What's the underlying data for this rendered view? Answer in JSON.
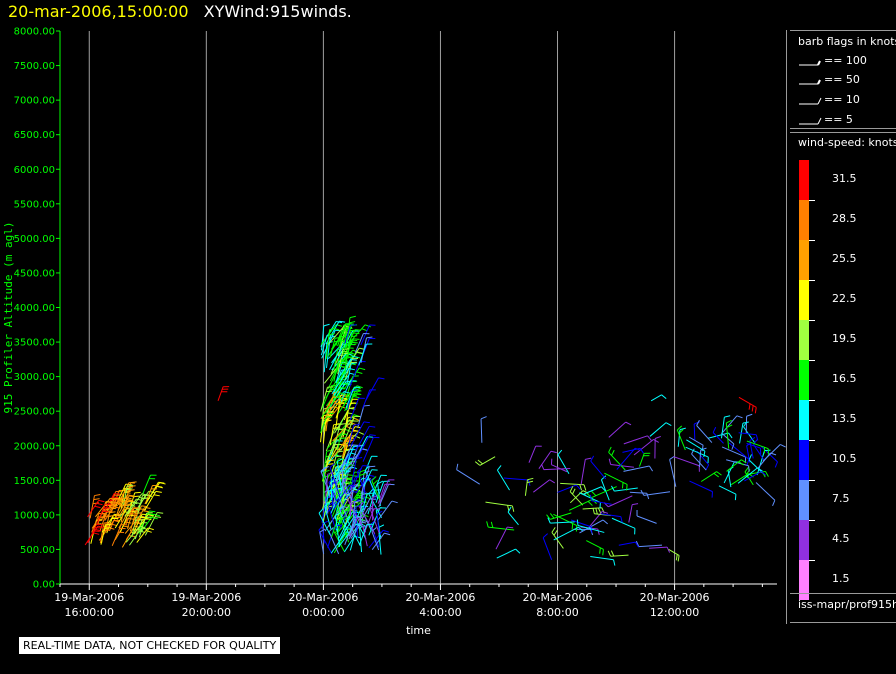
{
  "header": {
    "timestamp": "20-mar-2006,15:00:00",
    "product": "XYWind:915winds."
  },
  "colors": {
    "axis": "#00ff00",
    "grid": "#a0a0a0",
    "frame": "#ffffff"
  },
  "chart_data": {
    "type": "scatter",
    "title": "20-mar-2006,15:00:00 XYWind:915winds.",
    "xlabel": "time",
    "ylabel": "915 Profiler Altitude (m agl)",
    "ylim": [
      0,
      8000
    ],
    "y_ticks": [
      "0.00",
      "500.00",
      "1000.00",
      "1500.00",
      "2000.00",
      "2500.00",
      "3000.00",
      "3500.00",
      "4000.00",
      "4500.00",
      "5000.00",
      "5500.00",
      "6000.00",
      "6500.00",
      "7000.00",
      "7500.00",
      "8000.00"
    ],
    "x_ticks": [
      {
        "date": "19-Mar-2006",
        "time": "16:00:00",
        "hours": 0
      },
      {
        "date": "19-Mar-2006",
        "time": "20:00:00",
        "hours": 4
      },
      {
        "date": "20-Mar-2006",
        "time": "0:00:00",
        "hours": 8
      },
      {
        "date": "20-Mar-2006",
        "time": "4:00:00",
        "hours": 12
      },
      {
        "date": "20-Mar-2006",
        "time": "8:00:00",
        "hours": 16
      },
      {
        "date": "20-Mar-2006",
        "time": "12:00:00",
        "hours": 20
      }
    ],
    "xlim_hours": [
      -1,
      23.5
    ],
    "grid": true,
    "series": [
      {
        "color_class": "red-orange",
        "time_range_hours": [
          -0.2,
          2
        ],
        "alt_range_m": [
          500,
          1400
        ],
        "speed_range_knots": [
          22,
          33
        ]
      },
      {
        "color_class": "multicolor",
        "time_range_hours": [
          7.8,
          10.1
        ],
        "alt_range_m": [
          400,
          3600
        ],
        "speed_range_knots": [
          4,
          26
        ]
      },
      {
        "color_class": "sparse",
        "time_range_hours": [
          12.9,
          23.1
        ],
        "alt_range_m": [
          300,
          2800
        ],
        "speed_range_knots": [
          3,
          33
        ]
      }
    ]
  },
  "legend": {
    "barb_title": "barb flags in knots",
    "barbs": [
      {
        "label": "== 100"
      },
      {
        "label": "== 50"
      },
      {
        "label": "== 10"
      },
      {
        "label": "== 5"
      }
    ],
    "speed_title": "wind-speed: knots",
    "colorbar": [
      {
        "label": "31.5",
        "color": "#ff0000"
      },
      {
        "label": "28.5",
        "color": "#ff8000"
      },
      {
        "label": "25.5",
        "color": "#ffa000"
      },
      {
        "label": "22.5",
        "color": "#ffff00"
      },
      {
        "label": "19.5",
        "color": "#a0ff40"
      },
      {
        "label": "16.5",
        "color": "#00ff00"
      },
      {
        "label": "13.5",
        "color": "#00ffff"
      },
      {
        "label": "10.5",
        "color": "#0000ff"
      },
      {
        "label": "7.5",
        "color": "#6090ff"
      },
      {
        "label": "4.5",
        "color": "#9030e0"
      },
      {
        "label": "1.5",
        "color": "#ff80ff"
      }
    ],
    "source": "iss-mapr/prof915h"
  },
  "note": "REAL-TIME DATA, NOT CHECKED FOR QUALITY"
}
